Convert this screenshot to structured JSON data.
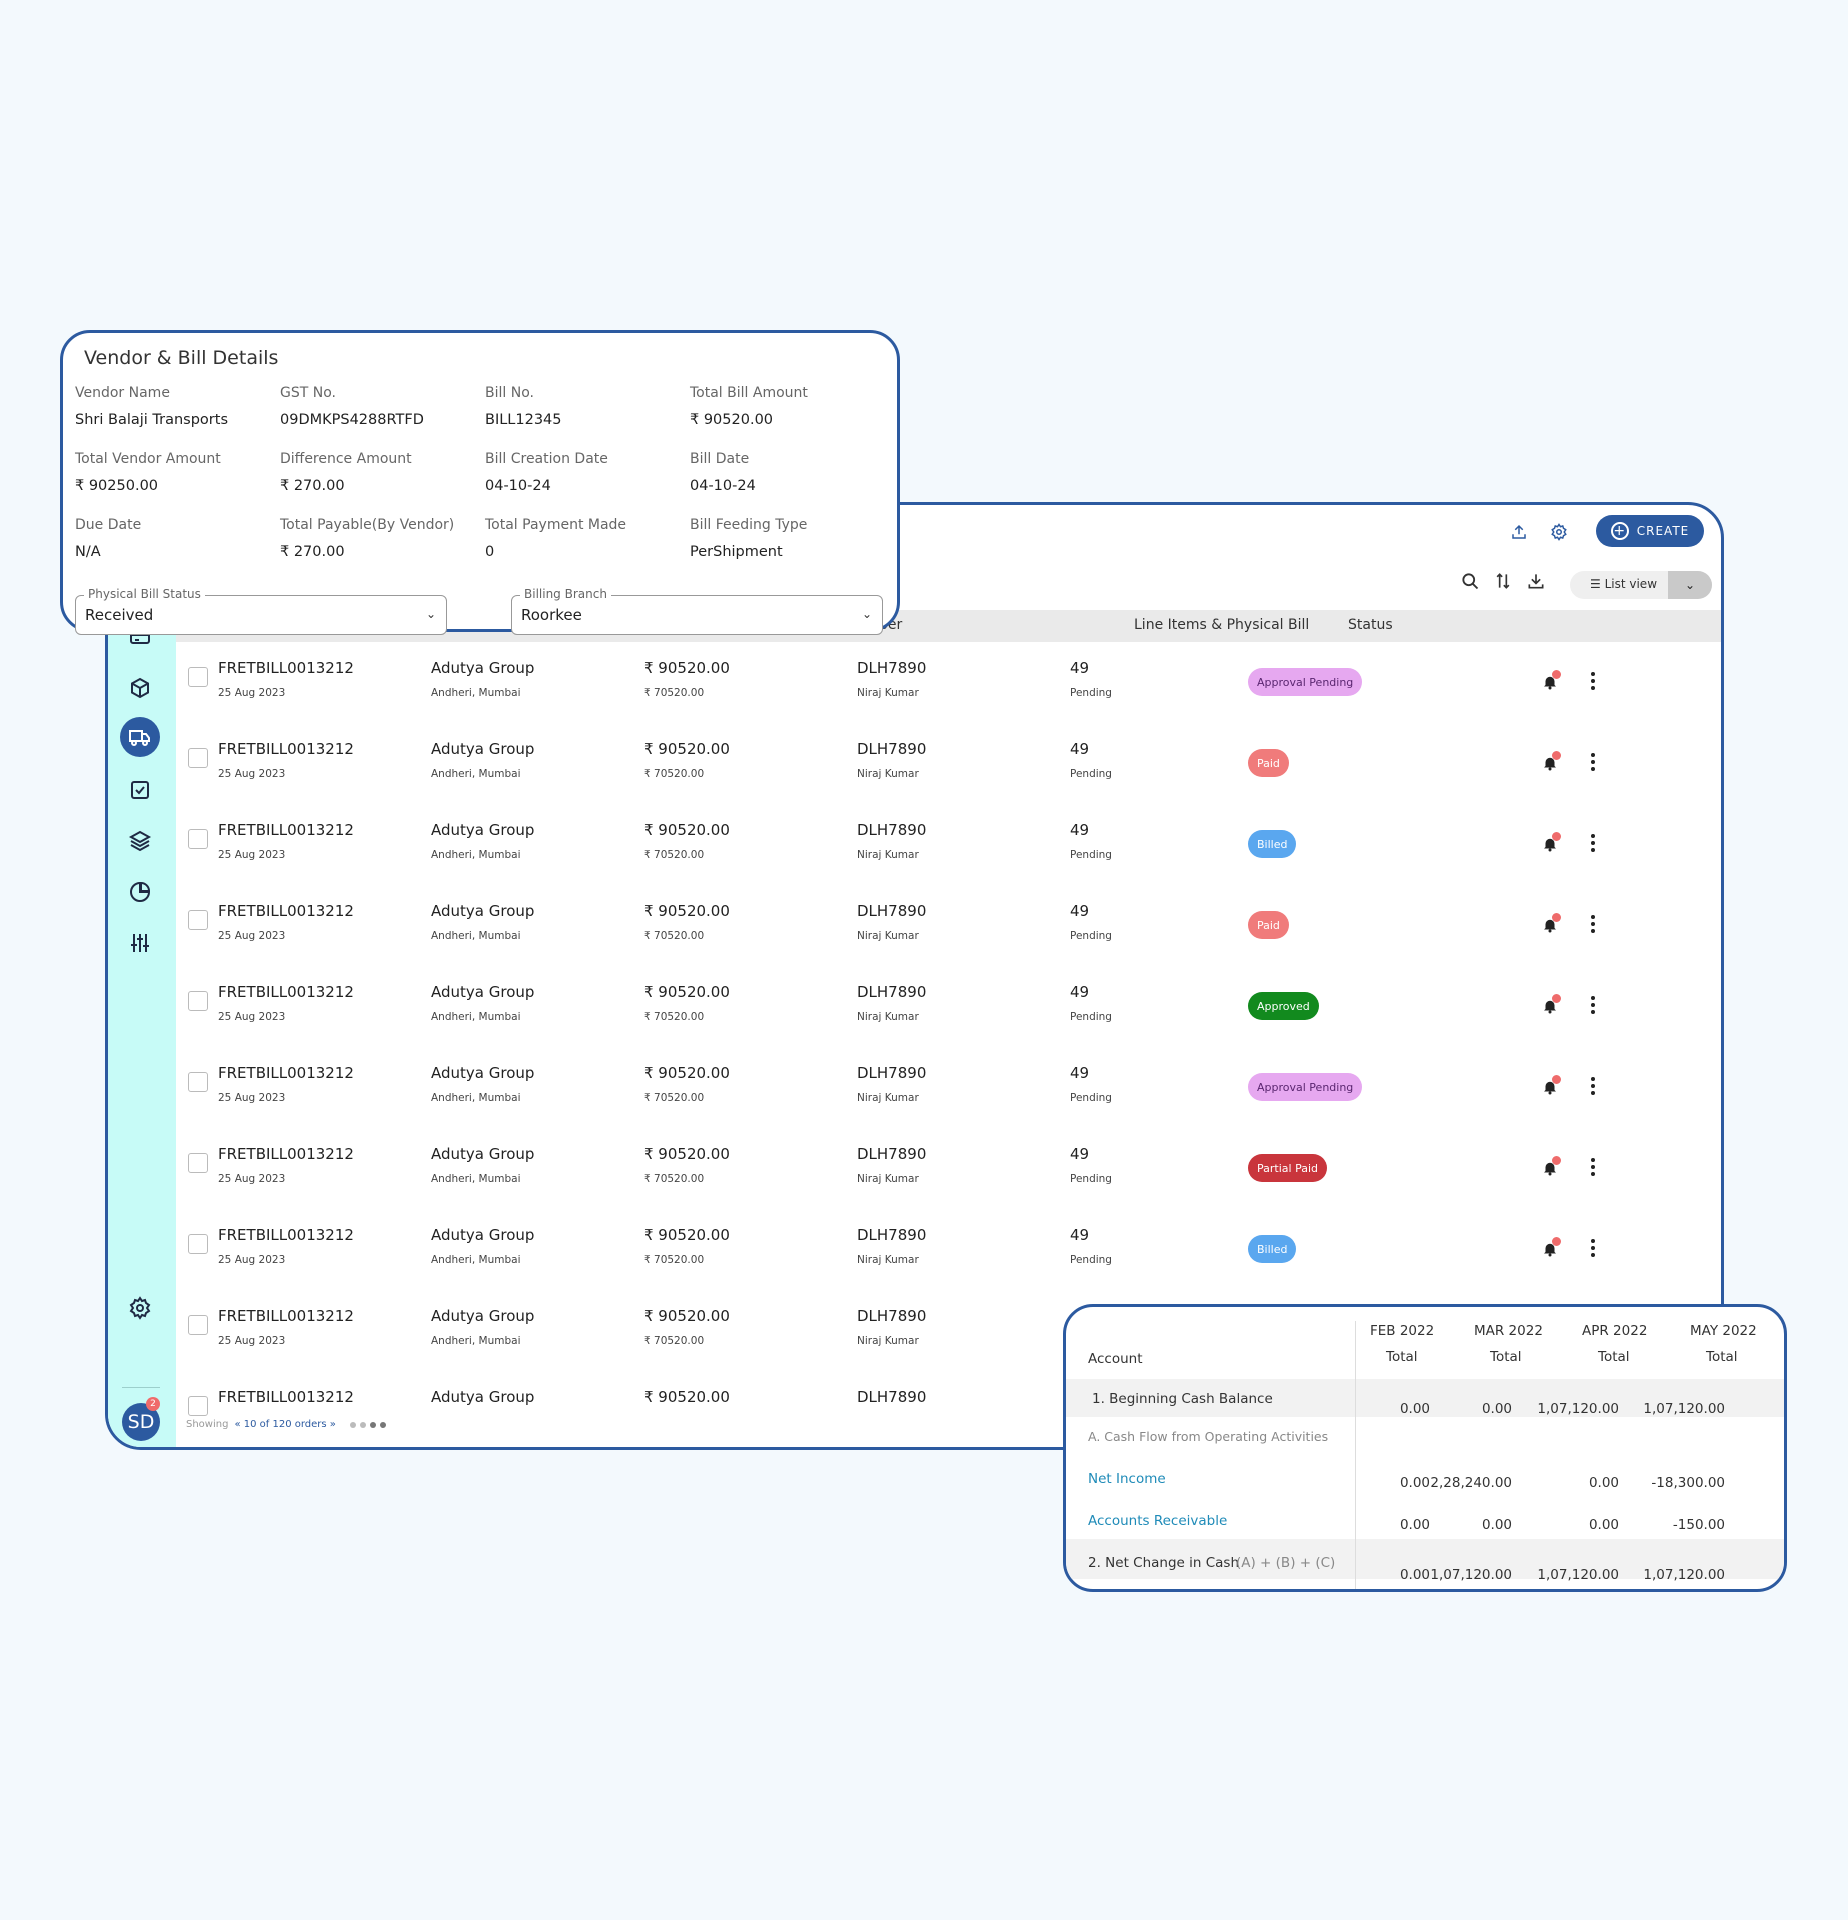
{
  "app": {
    "create_label": "CREATE",
    "view_label": "List view",
    "table_headers": {
      "number": "Number",
      "line_items": "Line Items & Physical Bill",
      "status": "Status"
    },
    "rows": [
      {
        "bill_id": "FRETBILL0013212",
        "date": "25 Aug 2023",
        "vendor": "Adutya Group",
        "location": "Andheri, Mumbai",
        "amount": "₹ 90520.00",
        "sub_amount": "₹ 70520.00",
        "vehicle": "DLH7890",
        "driver": "Niraj Kumar",
        "items": "49",
        "physical": "Pending",
        "status": "Approval Pending",
        "status_bg": "#e6a8f0",
        "status_fg": "#5a2670"
      },
      {
        "bill_id": "FRETBILL0013212",
        "date": "25 Aug 2023",
        "vendor": "Adutya Group",
        "location": "Andheri, Mumbai",
        "amount": "₹ 90520.00",
        "sub_amount": "₹ 70520.00",
        "vehicle": "DLH7890",
        "driver": "Niraj Kumar",
        "items": "49",
        "physical": "Pending",
        "status": "Paid",
        "status_bg": "#f07b7b",
        "status_fg": "#ffffff"
      },
      {
        "bill_id": "FRETBILL0013212",
        "date": "25 Aug 2023",
        "vendor": "Adutya Group",
        "location": "Andheri, Mumbai",
        "amount": "₹ 90520.00",
        "sub_amount": "₹ 70520.00",
        "vehicle": "DLH7890",
        "driver": "Niraj Kumar",
        "items": "49",
        "physical": "Pending",
        "status": "Billed",
        "status_bg": "#5aa7ef",
        "status_fg": "#ffffff"
      },
      {
        "bill_id": "FRETBILL0013212",
        "date": "25 Aug 2023",
        "vendor": "Adutya Group",
        "location": "Andheri, Mumbai",
        "amount": "₹ 90520.00",
        "sub_amount": "₹ 70520.00",
        "vehicle": "DLH7890",
        "driver": "Niraj Kumar",
        "items": "49",
        "physical": "Pending",
        "status": "Paid",
        "status_bg": "#f07b7b",
        "status_fg": "#ffffff"
      },
      {
        "bill_id": "FRETBILL0013212",
        "date": "25 Aug 2023",
        "vendor": "Adutya Group",
        "location": "Andheri, Mumbai",
        "amount": "₹ 90520.00",
        "sub_amount": "₹ 70520.00",
        "vehicle": "DLH7890",
        "driver": "Niraj Kumar",
        "items": "49",
        "physical": "Pending",
        "status": "Approved",
        "status_bg": "#128a1e",
        "status_fg": "#ffffff"
      },
      {
        "bill_id": "FRETBILL0013212",
        "date": "25 Aug 2023",
        "vendor": "Adutya Group",
        "location": "Andheri, Mumbai",
        "amount": "₹ 90520.00",
        "sub_amount": "₹ 70520.00",
        "vehicle": "DLH7890",
        "driver": "Niraj Kumar",
        "items": "49",
        "physical": "Pending",
        "status": "Approval Pending",
        "status_bg": "#e6a8f0",
        "status_fg": "#5a2670"
      },
      {
        "bill_id": "FRETBILL0013212",
        "date": "25 Aug 2023",
        "vendor": "Adutya Group",
        "location": "Andheri, Mumbai",
        "amount": "₹ 90520.00",
        "sub_amount": "₹ 70520.00",
        "vehicle": "DLH7890",
        "driver": "Niraj Kumar",
        "items": "49",
        "physical": "Pending",
        "status": "Partial Paid",
        "status_bg": "#c9353c",
        "status_fg": "#ffffff"
      },
      {
        "bill_id": "FRETBILL0013212",
        "date": "25 Aug 2023",
        "vendor": "Adutya Group",
        "location": "Andheri, Mumbai",
        "amount": "₹ 90520.00",
        "sub_amount": "₹ 70520.00",
        "vehicle": "DLH7890",
        "driver": "Niraj Kumar",
        "items": "49",
        "physical": "Pending",
        "status": "Billed",
        "status_bg": "#5aa7ef",
        "status_fg": "#ffffff"
      },
      {
        "bill_id": "FRETBILL0013212",
        "date": "25 Aug 2023",
        "vendor": "Adutya Group",
        "location": "Andheri, Mumbai",
        "amount": "₹ 90520.00",
        "sub_amount": "₹ 70520.00",
        "vehicle": "DLH7890",
        "driver": "Niraj Kumar",
        "items": "",
        "physical": "",
        "status": "",
        "status_bg": "",
        "status_fg": ""
      },
      {
        "bill_id": "FRETBILL0013212",
        "date": "",
        "vendor": "Adutya Group",
        "location": "",
        "amount": "₹ 90520.00",
        "sub_amount": "",
        "vehicle": "DLH7890",
        "driver": "",
        "items": "",
        "physical": "",
        "status": "",
        "status_bg": "",
        "status_fg": ""
      }
    ],
    "footer": {
      "showing": "Showing",
      "page_info": "« 10 of 120 orders »"
    },
    "avatar_initials": "SD",
    "avatar_badge": "2",
    "sidebar_icons": [
      "home-icon",
      "board-icon",
      "card-icon",
      "box-icon",
      "truck-icon",
      "checkbox-icon",
      "layers-icon",
      "pie-chart-icon",
      "sliders-icon"
    ],
    "accent_color": "#2c5aa0",
    "sidebar_color": "#c7fbf7"
  },
  "vendor_card": {
    "title": "Vendor & Bill Details",
    "fields": [
      {
        "label": "Vendor Name",
        "value": "Shri Balaji Transports"
      },
      {
        "label": "GST No.",
        "value": "09DMKPS4288RTFD"
      },
      {
        "label": "Bill No.",
        "value": "BILL12345"
      },
      {
        "label": "Total Bill Amount",
        "value": "₹ 90520.00"
      },
      {
        "label": "Total Vendor Amount",
        "value": "₹ 90250.00"
      },
      {
        "label": "Difference Amount",
        "value": "₹ 270.00"
      },
      {
        "label": "Bill Creation Date",
        "value": "04-10-24"
      },
      {
        "label": "Bill Date",
        "value": "04-10-24"
      },
      {
        "label": "Due Date",
        "value": "N/A"
      },
      {
        "label": "Total Payable(By Vendor)",
        "value": "₹ 270.00"
      },
      {
        "label": "Total Payment Made",
        "value": "0"
      },
      {
        "label": "Bill Feeding Type",
        "value": "PerShipment"
      }
    ],
    "physical_status": {
      "label": "Physical Bill Status",
      "value": "Received"
    },
    "billing_branch": {
      "label": "Billing Branch",
      "value": "Roorkee"
    }
  },
  "cashflow_card": {
    "account_header": "Account",
    "months": [
      "FEB 2022",
      "MAR 2022",
      "APR 2022",
      "MAY 2022"
    ],
    "total_label": "Total",
    "rows": [
      {
        "label": "1. Beginning Cash Balance",
        "values": [
          "0.00",
          "0.00",
          "1,07,120.00",
          "1,07,120.00"
        ]
      },
      {
        "label": "A. Cash Flow from Operating Activities",
        "values": [
          "",
          "",
          "",
          ""
        ]
      },
      {
        "label": "Net Income",
        "values": [
          "0.00",
          "2,28,240.00",
          "0.00",
          "-18,300.00"
        ]
      },
      {
        "label": "Accounts Receivable",
        "values": [
          "0.00",
          "0.00",
          "0.00",
          "-150.00"
        ]
      },
      {
        "label": "2. Net Change in Cash",
        "suffix": "(A) + (B) + (C)",
        "values": [
          "0.00",
          "1,07,120.00",
          "1,07,120.00",
          "1,07,120.00"
        ]
      }
    ]
  }
}
